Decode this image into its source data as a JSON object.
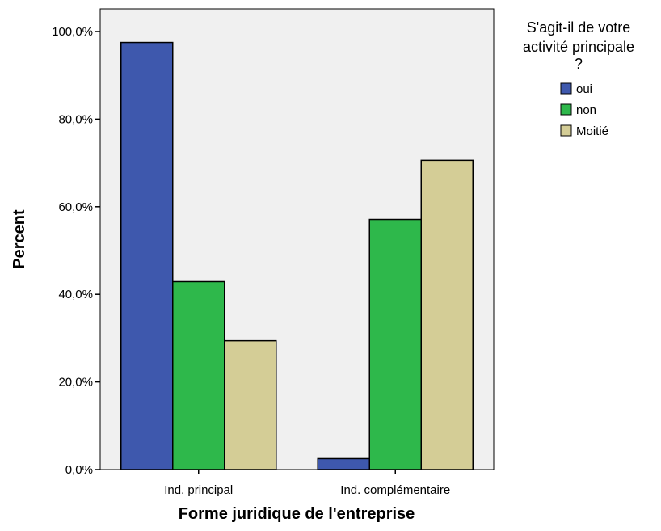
{
  "chart_data": {
    "type": "bar",
    "categories": [
      "Ind. principal",
      "Ind. complémentaire"
    ],
    "series": [
      {
        "name": "oui",
        "color": "#3e58ad",
        "values": [
          97.5,
          2.5
        ]
      },
      {
        "name": "non",
        "color": "#2eb84b",
        "values": [
          42.9,
          57.1
        ]
      },
      {
        "name": "Moitié",
        "color": "#d4cd96",
        "values": [
          29.4,
          70.6
        ]
      }
    ],
    "xlabel": "Forme juridique de l'entreprise",
    "ylabel": "Percent",
    "ylim": [
      0,
      100
    ],
    "yticks": [
      "0,0%",
      "20,0%",
      "40,0%",
      "60,0%",
      "80,0%",
      "100,0%"
    ],
    "legend": {
      "title_lines": [
        "S'agit-il de votre",
        "activité principale",
        "?"
      ],
      "placement": "top-right"
    },
    "plot_background": "#f0f0f0",
    "grid": false
  }
}
